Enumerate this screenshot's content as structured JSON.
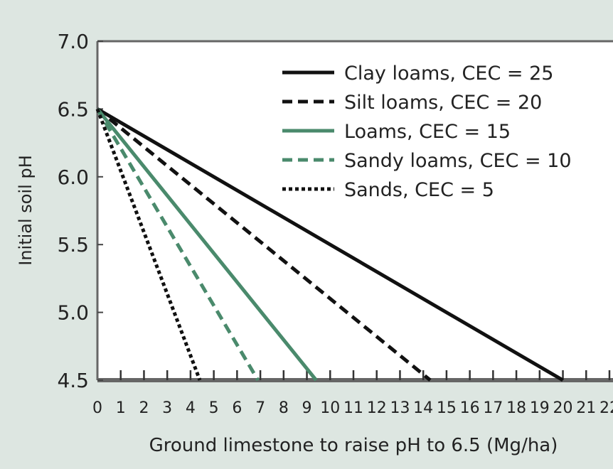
{
  "chart_data": {
    "type": "line",
    "title": "",
    "xlabel": "Ground limestone to raise pH to 6.5 (Mg/ha)",
    "ylabel": "Initial soil pH",
    "xlim": [
      0,
      22
    ],
    "ylim": [
      4.5,
      7.0
    ],
    "xticks": [
      0,
      1,
      2,
      3,
      4,
      5,
      6,
      7,
      8,
      9,
      10,
      11,
      12,
      13,
      14,
      15,
      16,
      17,
      18,
      19,
      20,
      21,
      22
    ],
    "xtick_labels": [
      "0",
      "1",
      "2",
      "3",
      "4",
      "5",
      "6",
      "7",
      "8",
      "9",
      "10",
      "11",
      "12",
      "13",
      "14",
      "15",
      "16",
      "17",
      "18",
      "19",
      "20",
      "21",
      "22"
    ],
    "yticks": [
      4.5,
      5.0,
      5.5,
      6.0,
      6.5,
      7.0
    ],
    "ytick_labels": [
      "4.5",
      "5.0",
      "5.5",
      "6.0",
      "6.5",
      "7.0"
    ],
    "grid": false,
    "legend_position": "top-right",
    "series": [
      {
        "name": "Clay loams, CEC = 25",
        "color": "#111111",
        "style": "solid",
        "x": [
          0,
          20.0
        ],
        "y": [
          6.5,
          4.5
        ]
      },
      {
        "name": "Silt loams, CEC = 20",
        "color": "#111111",
        "style": "dashed",
        "x": [
          0,
          14.3
        ],
        "y": [
          6.5,
          4.5
        ]
      },
      {
        "name": "Loams, CEC = 15",
        "color": "#4a8a6c",
        "style": "solid",
        "x": [
          0,
          9.4
        ],
        "y": [
          6.5,
          4.5
        ]
      },
      {
        "name": "Sandy loams, CEC = 10",
        "color": "#4a8a6c",
        "style": "dashed",
        "x": [
          0,
          6.9
        ],
        "y": [
          6.5,
          4.5
        ]
      },
      {
        "name": "Sands, CEC = 5",
        "color": "#111111",
        "style": "dotted",
        "x": [
          0,
          4.4
        ],
        "y": [
          6.5,
          4.5
        ]
      }
    ]
  }
}
